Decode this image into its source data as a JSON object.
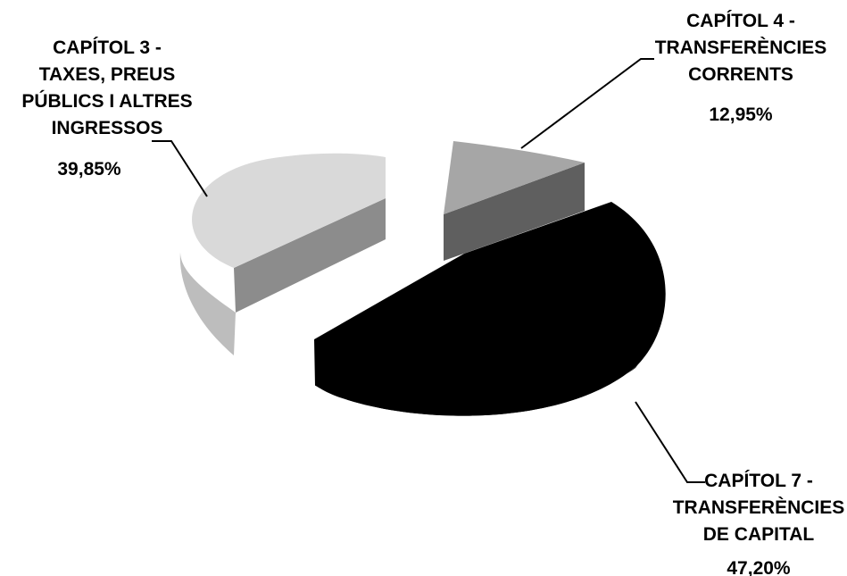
{
  "chart_data": {
    "type": "pie",
    "style": "3d-exploded",
    "legend": "none",
    "slices": [
      {
        "label_lines": [
          "CAPÍTOL 3 -",
          "TAXES, PREUS",
          "PÚBLICS I ALTRES",
          "INGRESSOS"
        ],
        "value": 39.85,
        "value_label": "39,85%",
        "color": "#d9d9d9"
      },
      {
        "label_lines": [
          "CAPÍTOL 4 -",
          "TRANSFERÈNCIES",
          "CORRENTS"
        ],
        "value": 12.95,
        "value_label": "12,95%",
        "color": "#a6a6a6"
      },
      {
        "label_lines": [
          "CAPÍTOL 7 -",
          "TRANSFERÈNCIES",
          "DE CAPITAL"
        ],
        "value": 47.2,
        "value_label": "47,20%",
        "color": "#000000"
      }
    ]
  }
}
